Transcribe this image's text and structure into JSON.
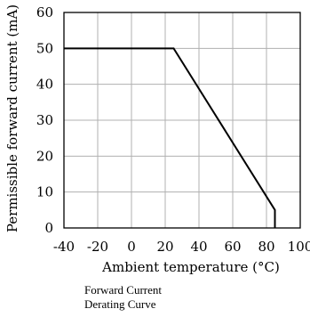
{
  "chart_data": {
    "type": "line",
    "xlabel": "Ambient temperature (°C)",
    "ylabel": "Permissible forward current (mA)",
    "xlim": [
      -40,
      100
    ],
    "ylim": [
      0,
      60
    ],
    "x_ticks": [
      -40,
      -20,
      0,
      20,
      40,
      60,
      80,
      100
    ],
    "y_ticks": [
      0,
      10,
      20,
      30,
      40,
      50,
      60
    ],
    "grid": true,
    "series": [
      {
        "x": [
          -40,
          25,
          85,
          85
        ],
        "y": [
          50,
          50,
          5,
          0
        ]
      }
    ],
    "caption_line1": "Forward Current",
    "caption_line2": "Derating  Curve"
  }
}
